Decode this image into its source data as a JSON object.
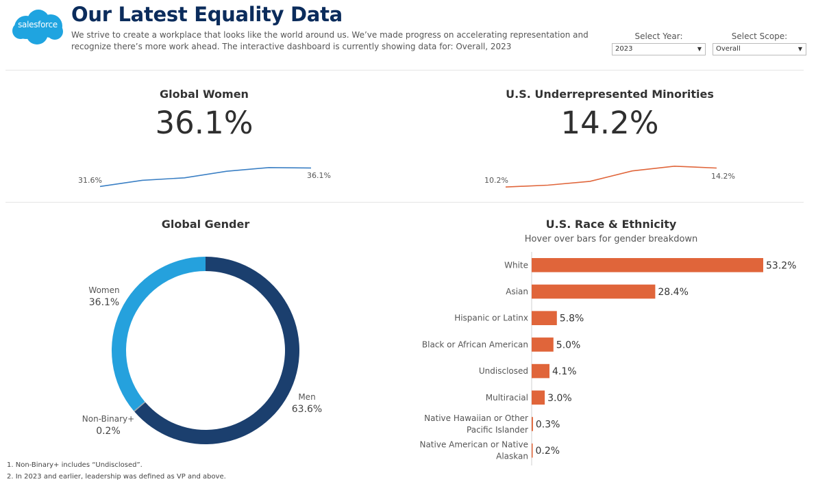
{
  "header": {
    "logo_text": "salesforce",
    "title": "Our Latest Equality Data",
    "subtitle": "We strive to create a workplace that looks like the world around us. We’ve made progress on accelerating representation and recognize there’s more work ahead. The interactive dashboard is currently showing data for: Overall, 2023",
    "brand_color": "#1fa4e0",
    "title_color": "#0b2c5c"
  },
  "filters": {
    "year": {
      "label": "Select Year:",
      "value": "2023"
    },
    "scope": {
      "label": "Select Scope:",
      "value": "Overall"
    }
  },
  "kpis": {
    "women": {
      "title": "Global Women",
      "value": "36.1%",
      "start_label": "31.6%",
      "end_label": "36.1%",
      "color": "#3a7fc4"
    },
    "urm": {
      "title": "U.S. Underrepresented Minorities",
      "value": "14.2%",
      "start_label": "10.2%",
      "end_label": "14.2%",
      "color": "#e0653a"
    }
  },
  "gender": {
    "title": "Global Gender",
    "women_label": "Women",
    "women_pct": "36.1%",
    "men_label": "Men",
    "men_pct": "63.6%",
    "nb_label": "Non-Binary+",
    "nb_pct": "0.2%"
  },
  "race": {
    "title": "U.S. Race & Ethnicity",
    "subtitle": "Hover over bars for gender breakdown"
  },
  "footnotes": {
    "note1": "1. Non-Binary+ includes “Undisclosed”.",
    "note2": "2. In 2023 and earlier, leadership was defined as VP and above."
  },
  "chart_data": [
    {
      "type": "line",
      "title": "Global Women",
      "x": [
        1,
        2,
        3,
        4,
        5,
        6
      ],
      "values": [
        31.6,
        33.1,
        33.7,
        35.3,
        36.2,
        36.1
      ],
      "ylim": [
        31,
        37
      ],
      "color": "#3a7fc4"
    },
    {
      "type": "line",
      "title": "U.S. Underrepresented Minorities",
      "x": [
        1,
        2,
        3,
        4,
        5,
        6
      ],
      "values": [
        10.2,
        10.6,
        11.4,
        13.6,
        14.6,
        14.2
      ],
      "ylim": [
        9.8,
        15
      ],
      "color": "#e0653a"
    },
    {
      "type": "pie",
      "title": "Global Gender",
      "categories": [
        "Men",
        "Non-Binary+",
        "Women"
      ],
      "values": [
        63.6,
        0.2,
        36.1
      ],
      "colors": [
        "#1b3f6e",
        "#9aa3ad",
        "#25a1dd"
      ]
    },
    {
      "type": "bar",
      "orientation": "horizontal",
      "title": "U.S. Race & Ethnicity",
      "categories": [
        "White",
        "Asian",
        "Hispanic or Latinx",
        "Black or African American",
        "Undisclosed",
        "Multiracial",
        "Native Hawaiian or Other Pacific Islander",
        "Native American or Native Alaskan"
      ],
      "category_lines": [
        [
          "White"
        ],
        [
          "Asian"
        ],
        [
          "Hispanic or Latinx"
        ],
        [
          "Black or African American"
        ],
        [
          "Undisclosed"
        ],
        [
          "Multiracial"
        ],
        [
          "Native Hawaiian or Other",
          "Pacific Islander"
        ],
        [
          "Native American or Native",
          "Alaskan"
        ]
      ],
      "values": [
        53.2,
        28.4,
        5.8,
        5.0,
        4.1,
        3.0,
        0.3,
        0.2
      ],
      "value_labels": [
        "53.2%",
        "28.4%",
        "5.8%",
        "5.0%",
        "4.1%",
        "3.0%",
        "0.3%",
        "0.2%"
      ],
      "xlim": [
        0,
        53.2
      ],
      "color": "#e0653a"
    }
  ]
}
